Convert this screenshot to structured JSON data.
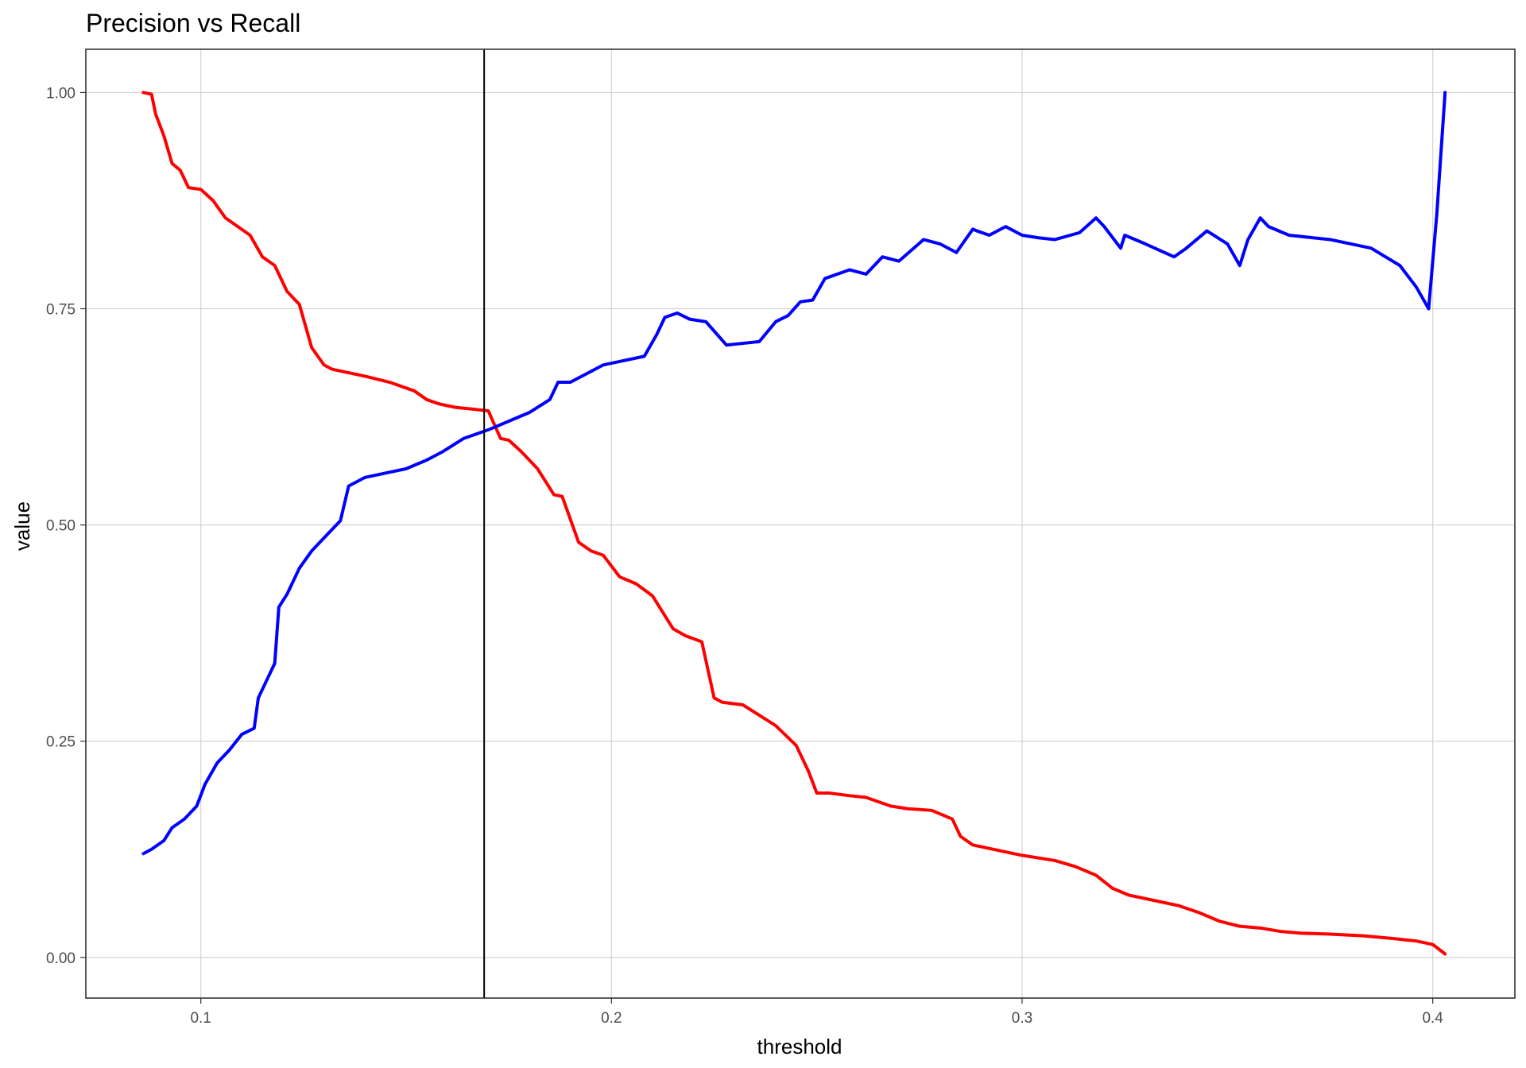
{
  "chart_data": {
    "type": "line",
    "title": "Precision vs Recall",
    "xlabel": "threshold",
    "ylabel": "value",
    "xlim": [
      0.072,
      0.42
    ],
    "ylim": [
      -0.047,
      1.05
    ],
    "x_ticks": [
      0.1,
      0.2,
      0.3,
      0.4
    ],
    "x_tick_labels": [
      "0.1",
      "0.2",
      "0.3",
      "0.4"
    ],
    "y_ticks": [
      0.0,
      0.25,
      0.5,
      0.75,
      1.0
    ],
    "y_tick_labels": [
      "0.00",
      "0.25",
      "0.50",
      "0.75",
      "1.00"
    ],
    "grid": true,
    "legend": "none",
    "vline_x": 0.169,
    "vline_color": "#000000",
    "series": [
      {
        "color": "#ff0000",
        "x": [
          0.086,
          0.088,
          0.089,
          0.091,
          0.093,
          0.095,
          0.097,
          0.1,
          0.103,
          0.106,
          0.109,
          0.112,
          0.115,
          0.118,
          0.119,
          0.121,
          0.124,
          0.127,
          0.13,
          0.132,
          0.136,
          0.14,
          0.146,
          0.152,
          0.155,
          0.158,
          0.162,
          0.166,
          0.17,
          0.173,
          0.175,
          0.178,
          0.182,
          0.186,
          0.188,
          0.192,
          0.195,
          0.198,
          0.202,
          0.206,
          0.21,
          0.215,
          0.218,
          0.222,
          0.225,
          0.227,
          0.232,
          0.236,
          0.24,
          0.245,
          0.248,
          0.25,
          0.253,
          0.258,
          0.262,
          0.268,
          0.272,
          0.278,
          0.283,
          0.285,
          0.288,
          0.293,
          0.3,
          0.308,
          0.313,
          0.318,
          0.322,
          0.326,
          0.332,
          0.338,
          0.343,
          0.348,
          0.353,
          0.358,
          0.363,
          0.368,
          0.375,
          0.383,
          0.39,
          0.396,
          0.4,
          0.403
        ],
        "values": [
          1.0,
          0.998,
          0.975,
          0.95,
          0.918,
          0.91,
          0.89,
          0.888,
          0.875,
          0.855,
          0.845,
          0.835,
          0.81,
          0.8,
          0.79,
          0.77,
          0.755,
          0.705,
          0.685,
          0.68,
          0.676,
          0.672,
          0.665,
          0.655,
          0.645,
          0.64,
          0.636,
          0.634,
          0.632,
          0.6,
          0.598,
          0.585,
          0.565,
          0.535,
          0.533,
          0.48,
          0.47,
          0.465,
          0.44,
          0.432,
          0.418,
          0.38,
          0.372,
          0.365,
          0.3,
          0.295,
          0.292,
          0.28,
          0.268,
          0.245,
          0.215,
          0.19,
          0.19,
          0.187,
          0.185,
          0.175,
          0.172,
          0.17,
          0.16,
          0.14,
          0.13,
          0.125,
          0.118,
          0.112,
          0.105,
          0.095,
          0.08,
          0.072,
          0.066,
          0.06,
          0.052,
          0.042,
          0.036,
          0.034,
          0.03,
          0.028,
          0.027,
          0.025,
          0.022,
          0.019,
          0.015,
          0.004
        ]
      },
      {
        "color": "#0000ff",
        "x": [
          0.086,
          0.088,
          0.091,
          0.093,
          0.096,
          0.099,
          0.101,
          0.104,
          0.107,
          0.11,
          0.113,
          0.114,
          0.116,
          0.118,
          0.119,
          0.121,
          0.124,
          0.127,
          0.131,
          0.134,
          0.136,
          0.14,
          0.145,
          0.15,
          0.155,
          0.159,
          0.164,
          0.167,
          0.17,
          0.175,
          0.18,
          0.185,
          0.187,
          0.19,
          0.194,
          0.198,
          0.203,
          0.208,
          0.211,
          0.213,
          0.216,
          0.219,
          0.223,
          0.228,
          0.232,
          0.236,
          0.24,
          0.243,
          0.246,
          0.249,
          0.252,
          0.258,
          0.262,
          0.266,
          0.27,
          0.276,
          0.28,
          0.284,
          0.288,
          0.289,
          0.292,
          0.296,
          0.3,
          0.304,
          0.308,
          0.314,
          0.318,
          0.32,
          0.324,
          0.325,
          0.33,
          0.337,
          0.34,
          0.345,
          0.35,
          0.353,
          0.355,
          0.358,
          0.36,
          0.365,
          0.375,
          0.385,
          0.392,
          0.396,
          0.399,
          0.401,
          0.403
        ],
        "values": [
          0.12,
          0.125,
          0.135,
          0.15,
          0.16,
          0.175,
          0.2,
          0.225,
          0.24,
          0.258,
          0.265,
          0.3,
          0.32,
          0.34,
          0.405,
          0.42,
          0.45,
          0.47,
          0.49,
          0.505,
          0.545,
          0.555,
          0.56,
          0.565,
          0.575,
          0.585,
          0.6,
          0.605,
          0.61,
          0.62,
          0.63,
          0.645,
          0.665,
          0.665,
          0.675,
          0.685,
          0.69,
          0.695,
          0.72,
          0.74,
          0.745,
          0.738,
          0.735,
          0.708,
          0.71,
          0.712,
          0.735,
          0.742,
          0.758,
          0.76,
          0.785,
          0.795,
          0.79,
          0.81,
          0.805,
          0.83,
          0.825,
          0.815,
          0.842,
          0.84,
          0.835,
          0.845,
          0.835,
          0.832,
          0.83,
          0.838,
          0.855,
          0.845,
          0.82,
          0.835,
          0.825,
          0.81,
          0.82,
          0.84,
          0.825,
          0.8,
          0.83,
          0.855,
          0.845,
          0.835,
          0.83,
          0.82,
          0.8,
          0.775,
          0.75,
          0.86,
          1.0
        ]
      }
    ]
  }
}
